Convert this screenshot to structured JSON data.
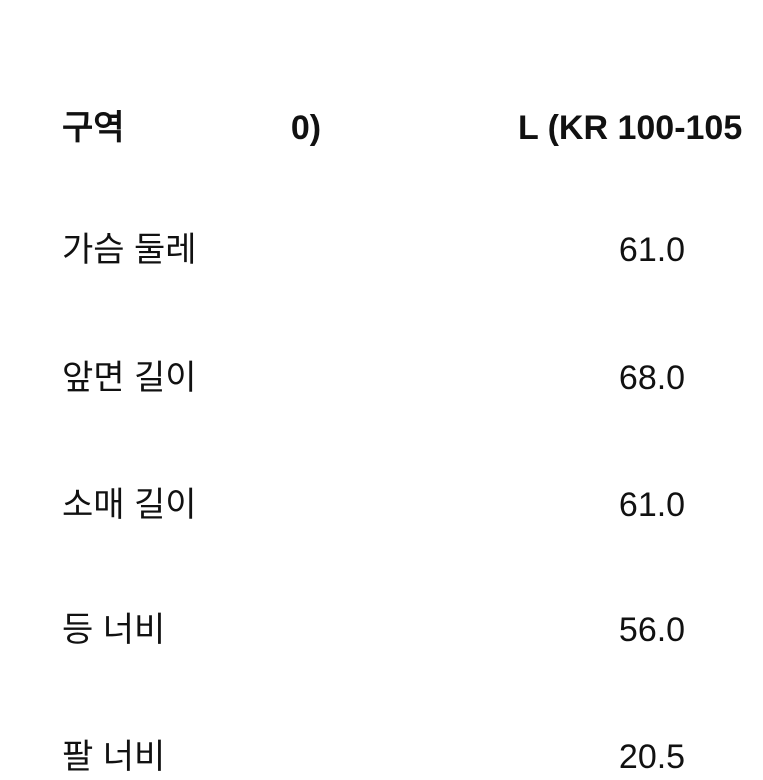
{
  "page": {
    "background_color": "#ffffff",
    "text_color": "#111111"
  },
  "size_chart": {
    "header": {
      "region_label": "구역",
      "mid_column_fragment": "0)",
      "right_column_fragment": "L (KR 100-105"
    },
    "rows": [
      {
        "label": "가슴 둘레",
        "value": "61.0"
      },
      {
        "label": "앞면 길이",
        "value": "68.0"
      },
      {
        "label": "소매 길이",
        "value": "61.0"
      },
      {
        "label": "등 너비",
        "value": "56.0"
      },
      {
        "label": "팔 너비",
        "value": "20.5"
      }
    ]
  }
}
